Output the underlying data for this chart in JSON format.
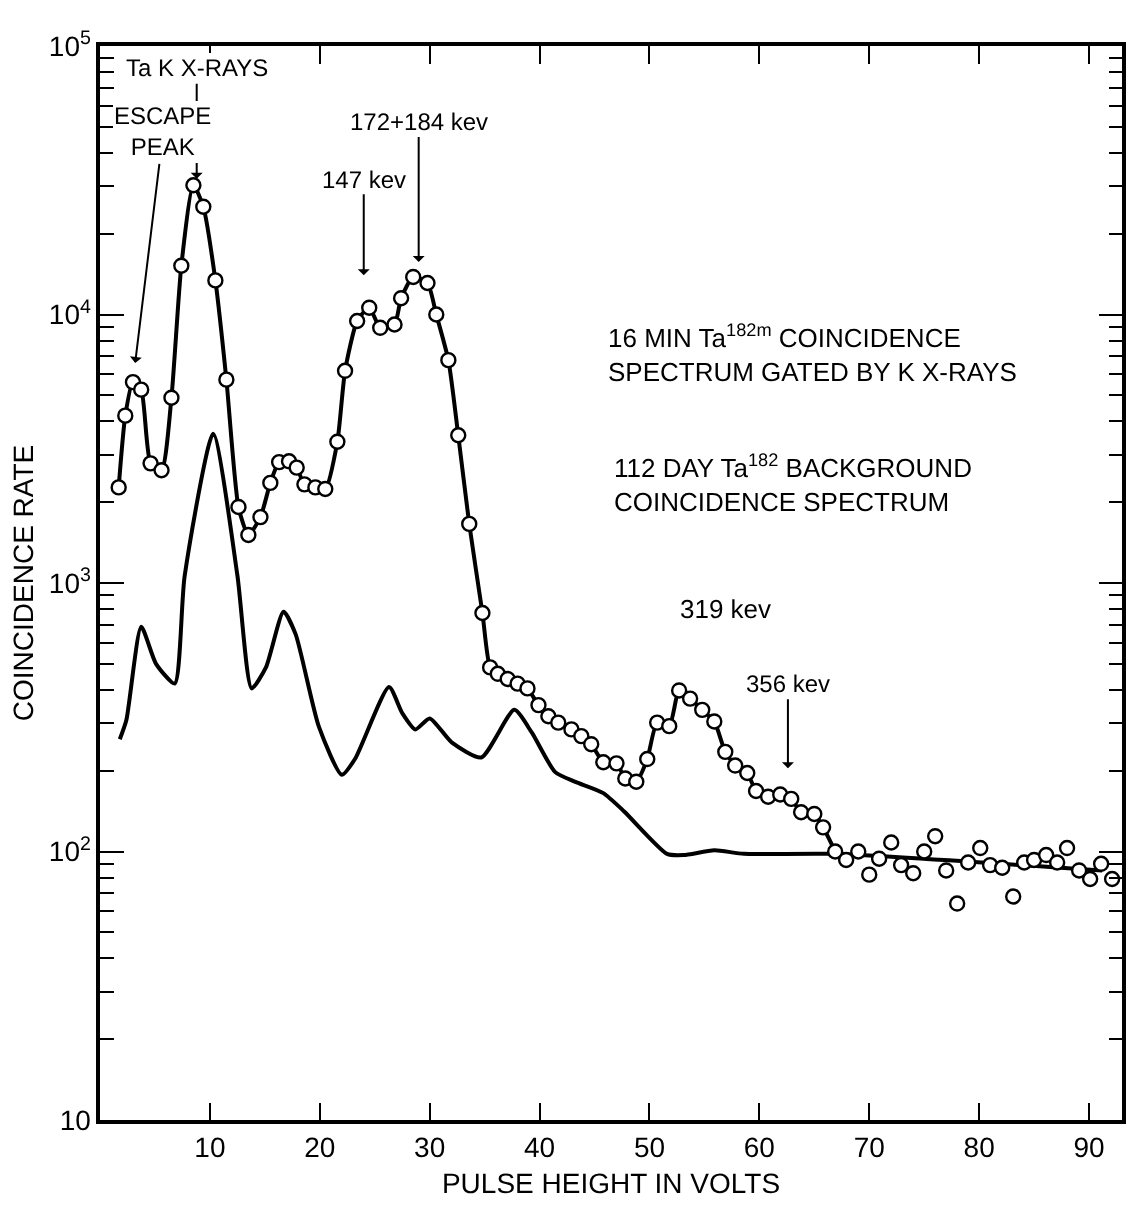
{
  "chart_data": {
    "type": "line",
    "xlabel": "PULSE HEIGHT IN VOLTS",
    "ylabel": "COINCIDENCE RATE",
    "xlim": [
      0,
      93
    ],
    "xticks": [
      10,
      20,
      30,
      40,
      50,
      60,
      70,
      80,
      90
    ],
    "ylim": [
      10,
      100000
    ],
    "log": "y",
    "yticks": [
      {
        "value": 10,
        "label": "10"
      },
      {
        "value": 100,
        "label": "10$^{2}$"
      },
      {
        "value": 1000,
        "label": "10$^{3}$"
      },
      {
        "value": 10000,
        "label": "10$^{4}$"
      },
      {
        "value": 100000,
        "label": "10$^{5}$"
      }
    ],
    "series": [
      {
        "marker": "circle",
        "color": "#000000",
        "x": [
          1.7,
          2.3,
          3.0,
          3.75,
          4.6,
          5.6,
          6.5,
          7.4,
          8.5,
          9.4,
          10.5,
          11.5,
          12.6,
          13.5,
          14.6,
          15.5,
          16.3,
          17.2,
          17.9,
          18.6,
          19.6,
          20.5,
          21.6,
          22.3,
          23.4,
          24.5,
          25.5,
          26.8,
          27.4,
          28.5,
          29.8,
          30.6,
          31.7,
          32.6,
          33.6,
          34.8,
          35.5,
          36.2,
          37.1,
          38.0,
          38.9,
          39.9,
          40.8,
          41.7,
          42.9,
          43.8,
          44.7,
          45.8,
          47.0,
          47.8,
          48.8,
          49.8,
          50.7,
          51.8,
          52.7,
          53.7,
          54.8,
          55.9,
          56.9,
          57.8,
          58.9,
          59.7,
          60.8,
          61.9,
          62.9,
          63.8,
          65.0,
          65.8,
          66.9
        ],
        "values": [
          2270,
          4200,
          5600,
          5250,
          2790,
          2630,
          4900,
          15200,
          30300,
          25200,
          13400,
          5720,
          1920,
          1510,
          1760,
          2360,
          2820,
          2840,
          2690,
          2330,
          2270,
          2240,
          3360,
          6170,
          9460,
          10600,
          8920,
          9180,
          11500,
          13800,
          13100,
          10000,
          6760,
          3550,
          1660,
          773,
          485,
          459,
          439,
          422,
          405,
          351,
          319,
          302,
          285,
          269,
          251,
          215,
          213,
          187,
          182,
          221,
          302,
          293,
          398,
          371,
          337,
          305,
          235,
          209,
          196,
          168,
          160,
          163,
          157,
          140,
          138,
          123,
          100
        ]
      },
      {
        "type": "scatter",
        "marker": "circle",
        "color": "#000000",
        "x": [
          67.9,
          69.0,
          70.0,
          70.9,
          72.0,
          72.9,
          74.0,
          75.0,
          76.0,
          77.0,
          78.0,
          79.0,
          80.1,
          81.0,
          82.1,
          83.1,
          84.1,
          85.0,
          86.1,
          87.1,
          88.0,
          89.1,
          90.1,
          91.1,
          92.1
        ],
        "values": [
          93,
          100,
          82,
          94,
          108,
          89,
          83,
          100,
          114,
          85,
          64,
          91,
          103,
          89,
          87,
          68,
          91,
          93,
          97,
          91,
          103,
          85,
          79,
          90,
          79
        ]
      },
      {
        "marker": "none",
        "color": "#000000",
        "x": [
          1.8,
          2.4,
          3.75,
          5.1,
          6.8,
          7.7,
          10.3,
          12.5,
          13.8,
          15.1,
          16.7,
          17.8,
          19.9,
          22.0,
          23.2,
          26.3,
          27.5,
          28.7,
          30.0,
          32.0,
          34.7,
          37.7,
          39.3,
          41.4,
          43.2,
          45.8,
          47.7,
          51.6,
          53.1,
          55.9,
          58.6,
          66.7,
          91.2
        ],
        "values": [
          262,
          309,
          687,
          500,
          422,
          1060,
          3600,
          1070,
          405,
          485,
          782,
          645,
          293,
          193,
          221,
          410,
          328,
          285,
          313,
          255,
          224,
          337,
          277,
          198,
          182,
          165,
          141,
          98,
          97,
          101,
          98,
          98,
          85
        ]
      }
    ],
    "annotations": [
      {
        "text": "ESCAPE\nPEAK",
        "x": 3.2,
        "y": 6600
      },
      {
        "text": "Ta K X-RAYS",
        "x": 8.8,
        "y": 32000
      },
      {
        "text": "147 kev",
        "x": 24.0,
        "y": 14000
      },
      {
        "text": "172+184 kev",
        "x": 29.0,
        "y": 15700
      },
      {
        "text": "356 kev",
        "x": 62.6,
        "y": 204
      },
      "319 kev",
      "16 MIN Ta$^{182m}$ COINCIDENCE\nSPECTRUM GATED BY K X-RAYS",
      "112 DAY Ta$^{182}$ BACKGROUND\nCOINCIDENCE SPECTRUM"
    ]
  }
}
